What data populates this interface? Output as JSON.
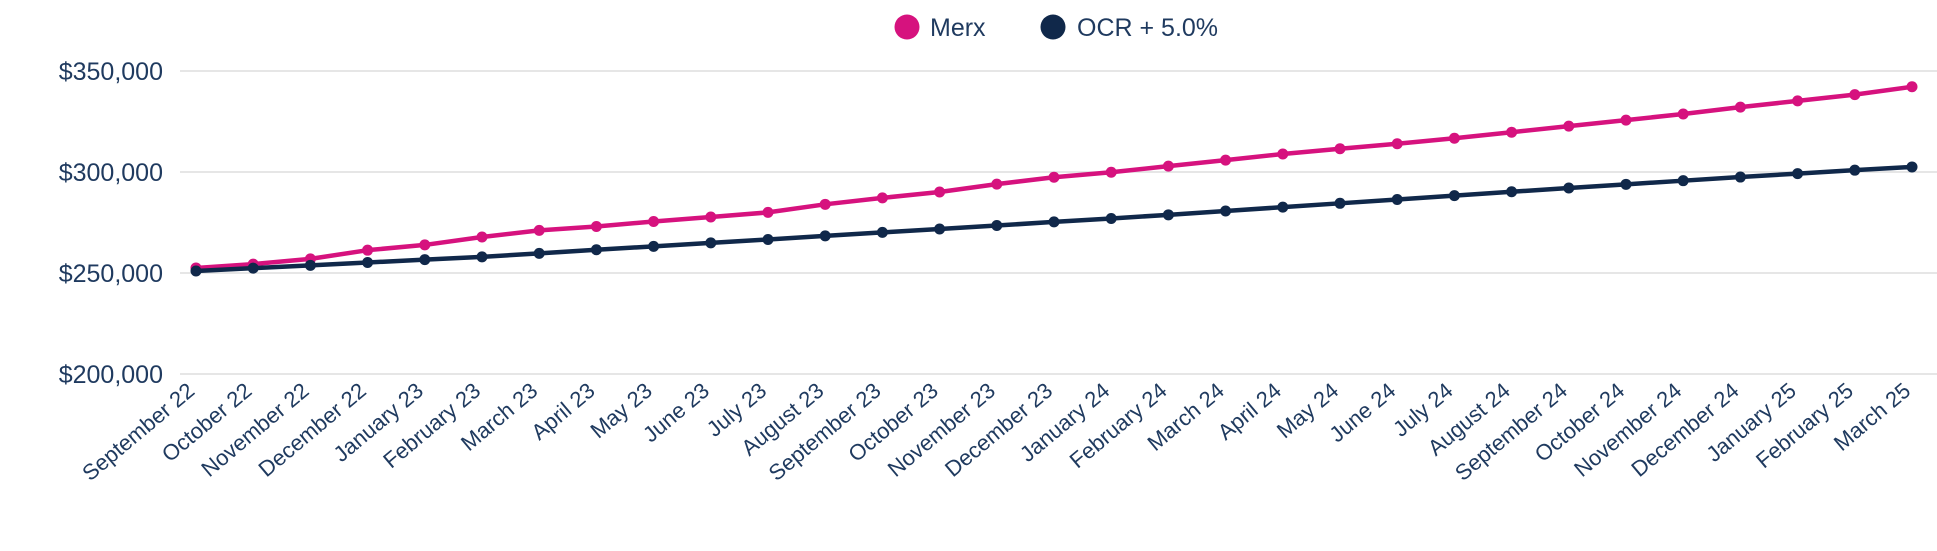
{
  "chart_data": {
    "type": "line",
    "title": "",
    "xlabel": "",
    "ylabel": "",
    "x": [
      "September 22",
      "October 22",
      "November 22",
      "December 22",
      "January 23",
      "February 23",
      "March 23",
      "April 23",
      "May 23",
      "June 23",
      "July 23",
      "August 23",
      "September 23",
      "October 23",
      "November 23",
      "December 23",
      "January 24",
      "February 24",
      "March 24",
      "April 24",
      "May 24",
      "June 24",
      "July 24",
      "August 24",
      "September 24",
      "October 24",
      "November 24",
      "December 24",
      "January 25",
      "February 25",
      "March 25"
    ],
    "ylim": [
      200000,
      350000
    ],
    "yticks": [
      200000,
      250000,
      300000,
      350000
    ],
    "ytick_labels": [
      "$200,000",
      "$250,000",
      "$300,000",
      "$350,000"
    ],
    "grid": true,
    "legend_position": "top-center",
    "series": [
      {
        "name": "Merx",
        "color": "#d6127e",
        "values": [
          252500,
          254400,
          257000,
          261300,
          263900,
          267800,
          271100,
          273000,
          275500,
          277700,
          280000,
          284000,
          287200,
          290100,
          294000,
          297400,
          299900,
          302900,
          305900,
          308900,
          311500,
          314000,
          316700,
          319700,
          322700,
          325700,
          328700,
          332100,
          335200,
          338300,
          342200
        ]
      },
      {
        "name": "OCR + 5.0%",
        "color": "#10284a",
        "values": [
          251000,
          252400,
          253800,
          255200,
          256600,
          258000,
          259700,
          261500,
          263200,
          264900,
          266600,
          268400,
          270100,
          271800,
          273500,
          275300,
          277000,
          278800,
          280700,
          282600,
          284500,
          286400,
          288300,
          290200,
          292100,
          293900,
          295700,
          297500,
          299200,
          300900,
          302500
        ]
      }
    ]
  }
}
